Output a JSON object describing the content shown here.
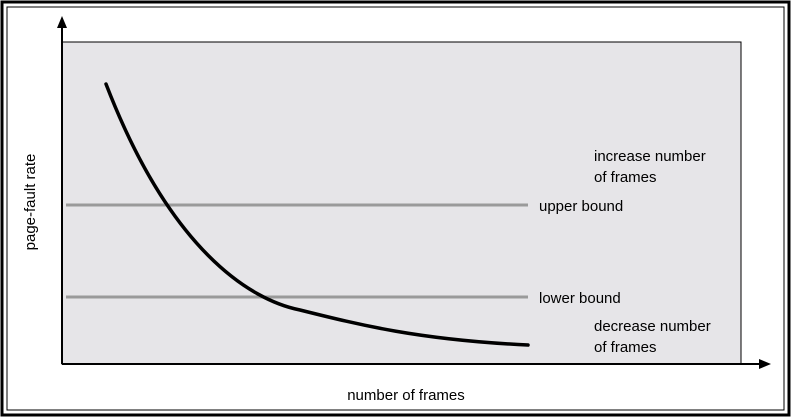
{
  "diagram": {
    "y_axis_label": "page-fault rate",
    "x_axis_label": "number of frames",
    "upper_bound_label": "upper bound",
    "lower_bound_label": "lower bound",
    "increase_label_line1": "increase number",
    "increase_label_line2": "of frames",
    "decrease_label_line1": "decrease number",
    "decrease_label_line2": "of frames"
  },
  "colors": {
    "plot_background": "#e6e5e8",
    "bound_line": "#9a9a9a",
    "curve": "#000000",
    "label_background": "#e6e5e8"
  }
}
